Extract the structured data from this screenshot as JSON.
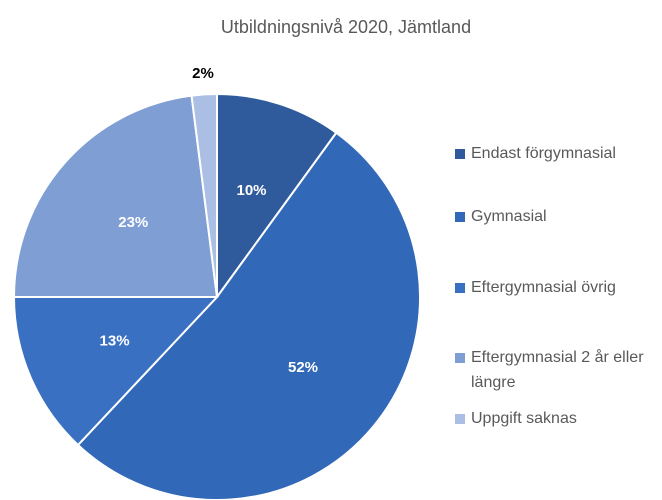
{
  "chart_data": {
    "type": "pie",
    "title": "Utbildningsnivå 2020, Jämtland",
    "categories": [
      "Endast förgymnasial",
      "Gymnasial",
      "Eftergymnasial övrig",
      "Eftergymnasial 2 år eller längre",
      "Uppgift saknas"
    ],
    "values": [
      10,
      52,
      13,
      23,
      2
    ],
    "value_labels": [
      "10%",
      "52%",
      "13%",
      "23%",
      "2%"
    ],
    "colors": [
      "#2f5b9c",
      "#3168b8",
      "#3a70c2",
      "#7f9fd4",
      "#abbfe5"
    ],
    "legend": "right"
  }
}
